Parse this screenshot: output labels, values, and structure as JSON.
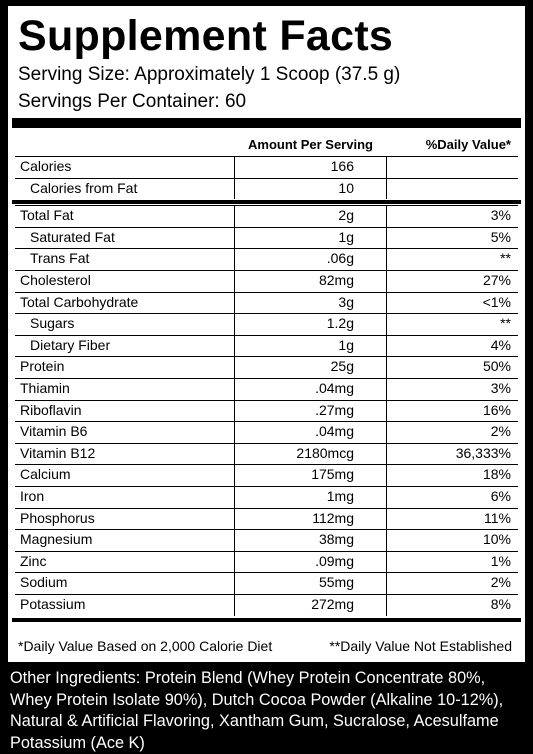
{
  "header": {
    "title": "Supplement Facts",
    "serving_size": "Serving Size: Approximately 1 Scoop (37.5 g)",
    "servings_per_container": "Servings Per Container: 60"
  },
  "table": {
    "columns": [
      "Amount Per Serving",
      "%Daily Value*"
    ],
    "sections": [
      {
        "rows": [
          {
            "label": "Calories",
            "amount": "166",
            "sub": [
              {
                "label": "Calories from Fat",
                "amount": "10"
              }
            ]
          }
        ]
      },
      {
        "rows": [
          {
            "label": "Total Fat",
            "amount": "2g",
            "dv": "3%",
            "sub": [
              {
                "label": "Saturated Fat",
                "amount": "1g",
                "dv": "5%"
              },
              {
                "label": "Trans Fat",
                "amount": ".06g",
                "dv": "**"
              }
            ]
          },
          {
            "label": "Cholesterol",
            "amount": "82mg",
            "dv": "27%"
          },
          {
            "label": "Total Carbohydrate",
            "amount": "3g",
            "dv": "<1%",
            "sub": [
              {
                "label": "Sugars",
                "amount": "1.2g",
                "dv": "**"
              },
              {
                "label": "Dietary Fiber",
                "amount": "1g",
                "dv": "4%"
              }
            ]
          },
          {
            "label": "Protein",
            "amount": "25g",
            "dv": "50%"
          },
          {
            "label": "Thiamin",
            "amount": ".04mg",
            "dv": "3%"
          },
          {
            "label": "Riboflavin",
            "amount": ".27mg",
            "dv": "16%"
          },
          {
            "label": "Vitamin B6",
            "amount": ".04mg",
            "dv": "2%"
          },
          {
            "label": "Vitamin B12",
            "amount": "2180mcg",
            "dv": "36,333%"
          },
          {
            "label": "Calcium",
            "amount": "175mg",
            "dv": "18%"
          },
          {
            "label": "Iron",
            "amount": "1mg",
            "dv": "6%"
          },
          {
            "label": "Phosphorus",
            "amount": "112mg",
            "dv": "11%"
          },
          {
            "label": "Magnesium",
            "amount": "38mg",
            "dv": "10%"
          },
          {
            "label": "Zinc",
            "amount": ".09mg",
            "dv": "1%"
          },
          {
            "label": "Sodium",
            "amount": "55mg",
            "dv": "2%"
          },
          {
            "label": "Potassium",
            "amount": "272mg",
            "dv": "8%"
          }
        ]
      }
    ]
  },
  "footnotes": [
    "*Daily Value Based on 2,000 Calorie Diet",
    "**Daily Value Not Established"
  ],
  "other_ingredients": "Other Ingredients: Protein Blend (Whey Protein Concentrate 80%, Whey Protein Isolate 90%), Dutch Cocoa Powder (Alkaline 10-12%), Natural & Artificial Flavoring, Xantham Gum, Sucralose, Acesulfame Potassium (Ace K)"
}
